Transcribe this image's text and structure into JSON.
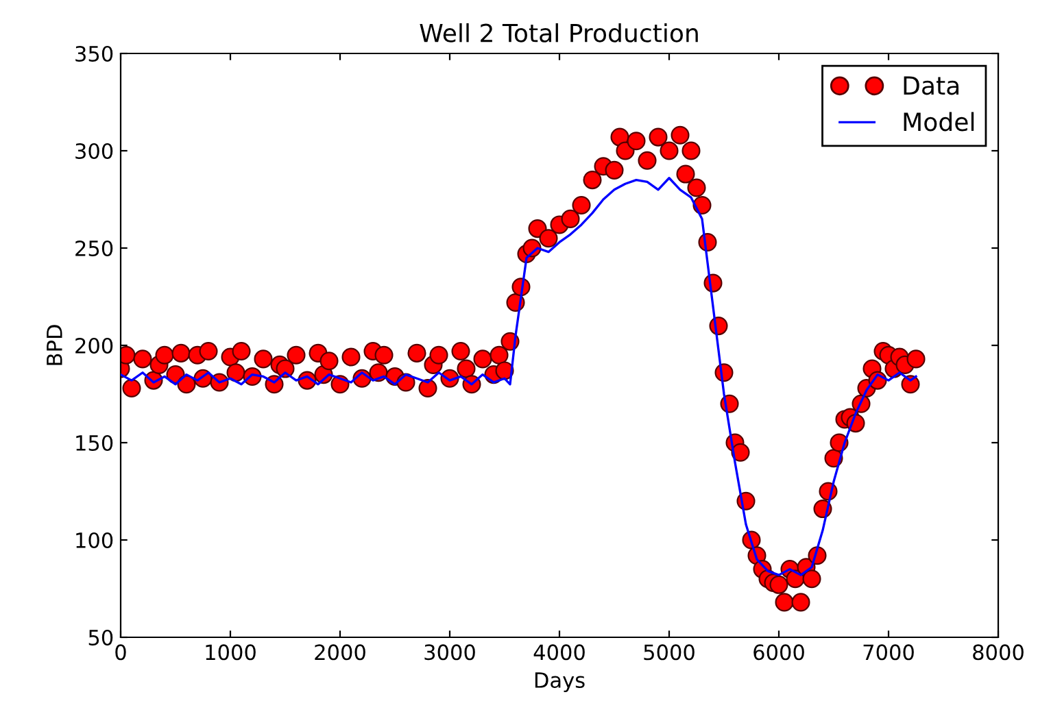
{
  "chart_data": {
    "type": "scatter",
    "title": "Well 2 Total Production",
    "xlabel": "Days",
    "ylabel": "BPD",
    "xlim": [
      0,
      8000
    ],
    "xticks": [
      0,
      1000,
      2000,
      3000,
      4000,
      5000,
      6000,
      7000,
      8000
    ],
    "ylim": [
      50,
      350
    ],
    "yticks": [
      50,
      100,
      150,
      200,
      250,
      300,
      350
    ],
    "grid": false,
    "legend": "top right",
    "series": [
      {
        "name": "Data",
        "color": "#ff0000",
        "marker": "circle",
        "x": [
          0,
          50,
          100,
          200,
          300,
          350,
          400,
          500,
          550,
          600,
          700,
          750,
          800,
          900,
          1000,
          1050,
          1100,
          1200,
          1300,
          1400,
          1450,
          1500,
          1600,
          1700,
          1800,
          1850,
          1900,
          2000,
          2100,
          2200,
          2300,
          2350,
          2400,
          2500,
          2600,
          2700,
          2800,
          2850,
          2900,
          3000,
          3100,
          3150,
          3200,
          3300,
          3400,
          3450,
          3500,
          3550,
          3600,
          3650,
          3700,
          3750,
          3800,
          3900,
          4000,
          4100,
          4200,
          4300,
          4400,
          4500,
          4550,
          4600,
          4700,
          4800,
          4900,
          5000,
          5100,
          5150,
          5200,
          5250,
          5300,
          5350,
          5400,
          5450,
          5500,
          5550,
          5600,
          5650,
          5700,
          5750,
          5800,
          5850,
          5900,
          5950,
          6000,
          6050,
          6100,
          6150,
          6200,
          6250,
          6300,
          6350,
          6400,
          6450,
          6500,
          6550,
          6600,
          6650,
          6700,
          6750,
          6800,
          6850,
          6900,
          6950,
          7000,
          7050,
          7100,
          7150,
          7200,
          7250
        ],
        "values": [
          188,
          195,
          178,
          193,
          182,
          190,
          195,
          185,
          196,
          180,
          195,
          183,
          197,
          181,
          194,
          186,
          197,
          184,
          193,
          180,
          190,
          188,
          195,
          182,
          196,
          185,
          192,
          180,
          194,
          183,
          197,
          186,
          195,
          184,
          181,
          196,
          178,
          190,
          195,
          183,
          197,
          188,
          180,
          193,
          185,
          195,
          187,
          202,
          222,
          230,
          247,
          250,
          260,
          255,
          262,
          265,
          272,
          285,
          292,
          290,
          307,
          300,
          305,
          295,
          307,
          300,
          308,
          288,
          300,
          281,
          272,
          253,
          232,
          210,
          186,
          170,
          150,
          145,
          120,
          100,
          92,
          85,
          80,
          78,
          77,
          68,
          85,
          80,
          68,
          86,
          80,
          92,
          116,
          125,
          142,
          150,
          162,
          163,
          160,
          170,
          178,
          188,
          182,
          197,
          195,
          188,
          194,
          190,
          180,
          193
        ]
      },
      {
        "name": "Model",
        "type": "line",
        "color": "#0000ff",
        "marker": "none",
        "line_style": "solid",
        "x": [
          0,
          100,
          200,
          300,
          400,
          500,
          600,
          700,
          800,
          900,
          1000,
          1100,
          1200,
          1300,
          1400,
          1500,
          1600,
          1700,
          1800,
          1900,
          2000,
          2100,
          2200,
          2300,
          2400,
          2500,
          2600,
          2700,
          2800,
          2900,
          3000,
          3100,
          3200,
          3300,
          3400,
          3500,
          3550,
          3600,
          3700,
          3800,
          3900,
          4000,
          4100,
          4200,
          4300,
          4400,
          4500,
          4600,
          4700,
          4800,
          4900,
          5000,
          5100,
          5200,
          5300,
          5400,
          5500,
          5600,
          5700,
          5800,
          5900,
          6000,
          6100,
          6200,
          6300,
          6400,
          6500,
          6600,
          6700,
          6800,
          6900,
          7000,
          7100,
          7200,
          7250
        ],
        "values": [
          185,
          182,
          186,
          181,
          184,
          180,
          185,
          182,
          186,
          181,
          183,
          180,
          185,
          184,
          181,
          186,
          182,
          184,
          180,
          185,
          183,
          181,
          186,
          182,
          184,
          180,
          185,
          183,
          181,
          186,
          182,
          184,
          180,
          185,
          181,
          183,
          180,
          205,
          245,
          250,
          248,
          253,
          257,
          262,
          268,
          275,
          280,
          283,
          285,
          284,
          280,
          286,
          280,
          276,
          265,
          220,
          175,
          140,
          108,
          90,
          84,
          82,
          85,
          82,
          86,
          105,
          130,
          150,
          165,
          177,
          185,
          182,
          186,
          182,
          184
        ]
      }
    ]
  }
}
